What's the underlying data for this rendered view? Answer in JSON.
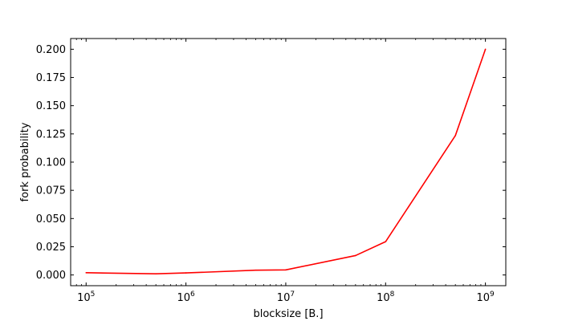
{
  "chart_data": {
    "type": "line",
    "title": "",
    "xlabel": "blocksize [B.]",
    "ylabel": "fork probability",
    "xscale": "log",
    "xlim": [
      70000,
      1600000000
    ],
    "ylim": [
      -0.0095,
      0.2095
    ],
    "grid": false,
    "legend": "none",
    "x_tick_labels": [
      {
        "value": 100000,
        "base": "10",
        "exp": "5"
      },
      {
        "value": 1000000,
        "base": "10",
        "exp": "6"
      },
      {
        "value": 10000000,
        "base": "10",
        "exp": "7"
      },
      {
        "value": 100000000,
        "base": "10",
        "exp": "8"
      },
      {
        "value": 1000000000,
        "base": "10",
        "exp": "9"
      }
    ],
    "y_tick_labels": [
      {
        "value": 0.0,
        "label": "0.000"
      },
      {
        "value": 0.025,
        "label": "0.025"
      },
      {
        "value": 0.05,
        "label": "0.050"
      },
      {
        "value": 0.075,
        "label": "0.075"
      },
      {
        "value": 0.1,
        "label": "0.100"
      },
      {
        "value": 0.125,
        "label": "0.125"
      },
      {
        "value": 0.15,
        "label": "0.150"
      },
      {
        "value": 0.175,
        "label": "0.175"
      },
      {
        "value": 0.2,
        "label": "0.200"
      }
    ],
    "series": [
      {
        "color": "#ff0000",
        "x": [
          100000,
          500000,
          1000000,
          5000000,
          10000000,
          50000000,
          100000000,
          500000000,
          1000000000
        ],
        "y": [
          0.002,
          0.001,
          0.0018,
          0.0042,
          0.0045,
          0.0172,
          0.0295,
          0.1235,
          0.2
        ]
      }
    ]
  }
}
